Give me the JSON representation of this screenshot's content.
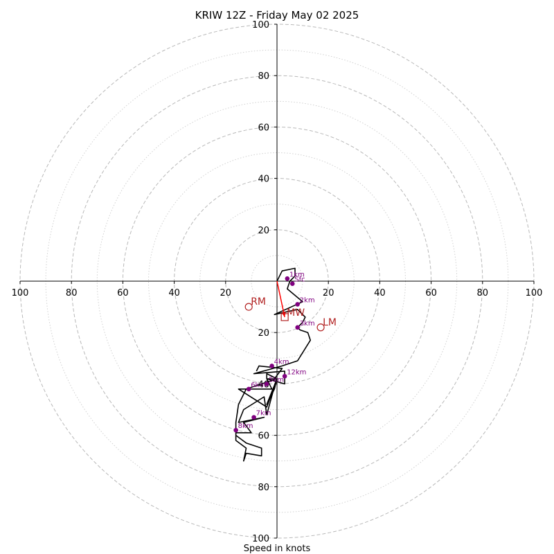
{
  "chart_data": {
    "type": "hodograph",
    "title": "KRIW 12Z - Friday May 02 2025",
    "xlabel": "Speed in knots",
    "range": [
      -100,
      100
    ],
    "x_ticks": [
      "100",
      "80",
      "60",
      "40",
      "20",
      "20",
      "40",
      "60",
      "80",
      "100"
    ],
    "x_tick_values": [
      -100,
      -80,
      -60,
      -40,
      -20,
      20,
      40,
      60,
      80,
      100
    ],
    "y_ticks": [
      "100",
      "80",
      "60",
      "40",
      "20",
      "20",
      "40",
      "60",
      "80",
      "100"
    ],
    "y_tick_values": [
      100,
      80,
      60,
      40,
      20,
      -20,
      -40,
      -60,
      -80,
      -100
    ],
    "rings_major": [
      20,
      40,
      60,
      80,
      100
    ],
    "rings_minor": [
      10,
      30,
      50,
      70,
      90
    ],
    "colors": {
      "trace": "#000000",
      "markers": "#800080",
      "motion": "#b22222",
      "shear": "#ff0000",
      "rings": "#b8b8b8"
    },
    "trace": [
      [
        0,
        0
      ],
      [
        2,
        4
      ],
      [
        7,
        5
      ],
      [
        7,
        2
      ],
      [
        5,
        0
      ],
      [
        4,
        -3
      ],
      [
        10,
        -8
      ],
      [
        -1,
        -13
      ],
      [
        8,
        -11
      ],
      [
        11,
        -14
      ],
      [
        10,
        -16
      ],
      [
        8,
        -18
      ],
      [
        9,
        -19
      ],
      [
        12,
        -20
      ],
      [
        13,
        -23
      ],
      [
        8,
        -31
      ],
      [
        2,
        -33
      ],
      [
        -9,
        -36
      ],
      [
        3,
        -35
      ],
      [
        3,
        -40
      ],
      [
        -4,
        -38
      ],
      [
        -2,
        -42
      ],
      [
        -7,
        -42
      ],
      [
        -10,
        -42
      ],
      [
        -15,
        -42
      ],
      [
        -4,
        -49
      ],
      [
        -1,
        -41
      ],
      [
        -4,
        -52
      ],
      [
        -5,
        -45
      ],
      [
        -13,
        -50
      ],
      [
        -15,
        -55
      ],
      [
        -5,
        -53
      ],
      [
        -13,
        -55
      ],
      [
        -10,
        -59
      ],
      [
        -16,
        -59
      ],
      [
        -16,
        -62
      ],
      [
        -12,
        -65
      ],
      [
        -13,
        -70
      ],
      [
        -12,
        -67
      ],
      [
        -6,
        -68
      ],
      [
        -6,
        -65
      ],
      [
        -12,
        -63
      ],
      [
        -16,
        -60
      ],
      [
        -16,
        -55
      ],
      [
        -15,
        -48
      ],
      [
        -12,
        -42
      ],
      [
        0,
        -38
      ],
      [
        -4,
        -48
      ],
      [
        -1,
        -42
      ],
      [
        0,
        -38
      ],
      [
        -4,
        -36
      ],
      [
        -4,
        -38
      ],
      [
        -1,
        -38
      ],
      [
        2,
        -34
      ],
      [
        -7,
        -33
      ],
      [
        -8,
        -35
      ]
    ],
    "heights": [
      {
        "label": "Sfc",
        "u": 6,
        "v": -1
      },
      {
        "label": "1km",
        "u": 4,
        "v": 1
      },
      {
        "label": "2km",
        "u": 8,
        "v": -9
      },
      {
        "label": "3km",
        "u": 8,
        "v": -18
      },
      {
        "label": "4km",
        "u": -2,
        "v": -33
      },
      {
        "label": "5km",
        "u": -4,
        "v": -40
      },
      {
        "label": "6km",
        "u": -11,
        "v": -42
      },
      {
        "label": "7km",
        "u": -9,
        "v": -53
      },
      {
        "label": "8km",
        "u": -16,
        "v": -58
      },
      {
        "label": "12km",
        "u": 3,
        "v": -37
      }
    ],
    "storm_motion": [
      {
        "label": "RM",
        "u": -11,
        "v": -10
      },
      {
        "label": "LM",
        "u": 17,
        "v": -18
      }
    ],
    "mean_wind": {
      "label": "MW",
      "u": 3,
      "v": -14
    },
    "shear_vector": {
      "from": [
        0,
        0
      ],
      "to": [
        3,
        -14
      ]
    }
  }
}
